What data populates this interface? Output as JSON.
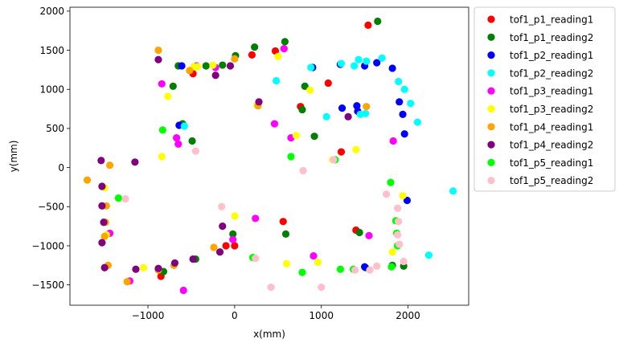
{
  "chart_data": {
    "type": "scatter",
    "xlabel": "x(mm)",
    "ylabel": "y(mm)",
    "xlim": [
      -1900,
      2700
    ],
    "ylim": [
      -1760,
      2050
    ],
    "xticks": [
      -1000,
      0,
      1000,
      2000
    ],
    "yticks": [
      -1500,
      -1000,
      -500,
      0,
      500,
      1000,
      1500,
      2000
    ],
    "tick_labels_x": [
      "−1000",
      "0",
      "1000",
      "2000"
    ],
    "tick_labels_y": [
      "−1500",
      "−1000",
      "−500",
      "0",
      "500",
      "1000",
      "1500",
      "2000"
    ],
    "grid": false,
    "legend_position": "outside-right-top",
    "series": [
      {
        "name": "tof1_p1_reading1",
        "color": "#ff0000",
        "points": [
          [
            1540,
            1820
          ],
          [
            1080,
            1080
          ],
          [
            470,
            1490
          ],
          [
            200,
            1440
          ],
          [
            -480,
            1200
          ],
          [
            -100,
            -1000
          ],
          [
            0,
            -1000
          ],
          [
            560,
            -690
          ],
          [
            1400,
            -800
          ],
          [
            1230,
            200
          ],
          [
            -850,
            -1390
          ],
          [
            760,
            780
          ]
        ]
      },
      {
        "name": "tof1_p1_reading2",
        "color": "#008000",
        "points": [
          [
            1650,
            1870
          ],
          [
            580,
            1610
          ],
          [
            230,
            1540
          ],
          [
            10,
            1430
          ],
          [
            -650,
            1300
          ],
          [
            -330,
            1300
          ],
          [
            -140,
            1310
          ],
          [
            -710,
            1040
          ],
          [
            -600,
            560
          ],
          [
            -490,
            340
          ],
          [
            810,
            1040
          ],
          [
            920,
            400
          ],
          [
            780,
            740
          ],
          [
            -820,
            -1330
          ],
          [
            -450,
            -1170
          ],
          [
            -20,
            -850
          ],
          [
            590,
            -850
          ],
          [
            1440,
            -830
          ],
          [
            1510,
            -1280
          ],
          [
            1950,
            -1260
          ],
          [
            1820,
            -1250
          ]
        ]
      },
      {
        "name": "tof1_p2_reading1",
        "color": "#0000ff",
        "points": [
          [
            1220,
            1320
          ],
          [
            900,
            1280
          ],
          [
            1500,
            1300
          ],
          [
            1640,
            1340
          ],
          [
            1940,
            680
          ],
          [
            1900,
            840
          ],
          [
            1960,
            430
          ],
          [
            1990,
            -420
          ],
          [
            1240,
            760
          ],
          [
            1410,
            790
          ],
          [
            1420,
            720
          ],
          [
            -610,
            1300
          ],
          [
            -640,
            540
          ],
          [
            1820,
            1270
          ],
          [
            1500,
            -1270
          ]
        ]
      },
      {
        "name": "tof1_p2_reading2",
        "color": "#00ffff",
        "points": [
          [
            1700,
            1400
          ],
          [
            1520,
            1360
          ],
          [
            1380,
            1300
          ],
          [
            1230,
            1330
          ],
          [
            880,
            1280
          ],
          [
            480,
            1110
          ],
          [
            1890,
            1100
          ],
          [
            1960,
            1000
          ],
          [
            2030,
            820
          ],
          [
            2110,
            580
          ],
          [
            1510,
            690
          ],
          [
            1060,
            650
          ],
          [
            1450,
            680
          ],
          [
            -580,
            530
          ],
          [
            2520,
            -300
          ],
          [
            2240,
            -1120
          ],
          [
            1430,
            1380
          ]
        ]
      },
      {
        "name": "tof1_p3_reading1",
        "color": "#ff00ff",
        "points": [
          [
            -840,
            1070
          ],
          [
            -440,
            1300
          ],
          [
            -220,
            1280
          ],
          [
            570,
            1520
          ],
          [
            460,
            560
          ],
          [
            650,
            380
          ],
          [
            1830,
            340
          ],
          [
            240,
            -650
          ],
          [
            -20,
            -920
          ],
          [
            910,
            -1130
          ],
          [
            1550,
            -870
          ],
          [
            -1440,
            -840
          ],
          [
            -1210,
            -1450
          ],
          [
            -590,
            -1570
          ],
          [
            -650,
            300
          ],
          [
            -670,
            380
          ]
        ]
      },
      {
        "name": "tof1_p3_reading2",
        "color": "#ffff00",
        "points": [
          [
            -770,
            910
          ],
          [
            -840,
            140
          ],
          [
            -470,
            1290
          ],
          [
            -430,
            1290
          ],
          [
            500,
            1420
          ],
          [
            870,
            990
          ],
          [
            710,
            410
          ],
          [
            1400,
            230
          ],
          [
            1130,
            100
          ],
          [
            1940,
            -360
          ],
          [
            2,
            -620
          ],
          [
            600,
            -1230
          ],
          [
            960,
            -1210
          ],
          [
            1820,
            -1080
          ],
          [
            -1050,
            -1280
          ],
          [
            -1480,
            -860
          ],
          [
            -1500,
            -260
          ],
          [
            -250,
            1310
          ],
          [
            260,
            800
          ]
        ]
      },
      {
        "name": "tof1_p4_reading1",
        "color": "#ffa500",
        "points": [
          [
            -880,
            1500
          ],
          [
            -520,
            1240
          ],
          [
            0,
            1390
          ],
          [
            1520,
            780
          ],
          [
            270,
            790
          ],
          [
            -1700,
            -160
          ],
          [
            -1440,
            30
          ],
          [
            -1460,
            -1250
          ],
          [
            -1240,
            -1460
          ],
          [
            -1500,
            -880
          ],
          [
            -1490,
            -700
          ],
          [
            -1480,
            -490
          ],
          [
            -700,
            -1250
          ],
          [
            -240,
            -1020
          ],
          [
            -880,
            -1310
          ]
        ]
      },
      {
        "name": "tof1_p4_reading2",
        "color": "#800080",
        "points": [
          [
            -880,
            1380
          ],
          [
            -220,
            1180
          ],
          [
            -50,
            1300
          ],
          [
            280,
            840
          ],
          [
            1310,
            650
          ],
          [
            -1540,
            90
          ],
          [
            -1150,
            70
          ],
          [
            -1530,
            -240
          ],
          [
            -1530,
            -490
          ],
          [
            -1510,
            -700
          ],
          [
            -1530,
            -960
          ],
          [
            -1500,
            -1280
          ],
          [
            -1140,
            -1300
          ],
          [
            -690,
            -1220
          ],
          [
            -480,
            -1170
          ],
          [
            -170,
            -1080
          ],
          [
            -140,
            -750
          ],
          [
            -880,
            -1290
          ]
        ]
      },
      {
        "name": "tof1_p5_reading1",
        "color": "#00ff00",
        "points": [
          [
            -830,
            480
          ],
          [
            1160,
            100
          ],
          [
            650,
            140
          ],
          [
            -1340,
            -390
          ],
          [
            1800,
            -190
          ],
          [
            1860,
            -680
          ],
          [
            1870,
            -840
          ],
          [
            1880,
            -1000
          ],
          [
            1810,
            -1270
          ],
          [
            1220,
            -1300
          ],
          [
            780,
            -1340
          ],
          [
            1370,
            -1300
          ],
          [
            210,
            -1150
          ]
        ]
      },
      {
        "name": "tof1_p5_reading2",
        "color": "#ffc0cb",
        "points": [
          [
            -450,
            210
          ],
          [
            790,
            -40
          ],
          [
            1140,
            100
          ],
          [
            1750,
            -340
          ],
          [
            1880,
            -520
          ],
          [
            1890,
            -690
          ],
          [
            1880,
            -860
          ],
          [
            1900,
            -980
          ],
          [
            1950,
            -1200
          ],
          [
            1560,
            -1310
          ],
          [
            1640,
            -1260
          ],
          [
            1390,
            -1310
          ],
          [
            1000,
            -1530
          ],
          [
            420,
            -1530
          ],
          [
            240,
            -1160
          ],
          [
            -1260,
            -400
          ],
          [
            -150,
            -500
          ]
        ]
      }
    ]
  }
}
